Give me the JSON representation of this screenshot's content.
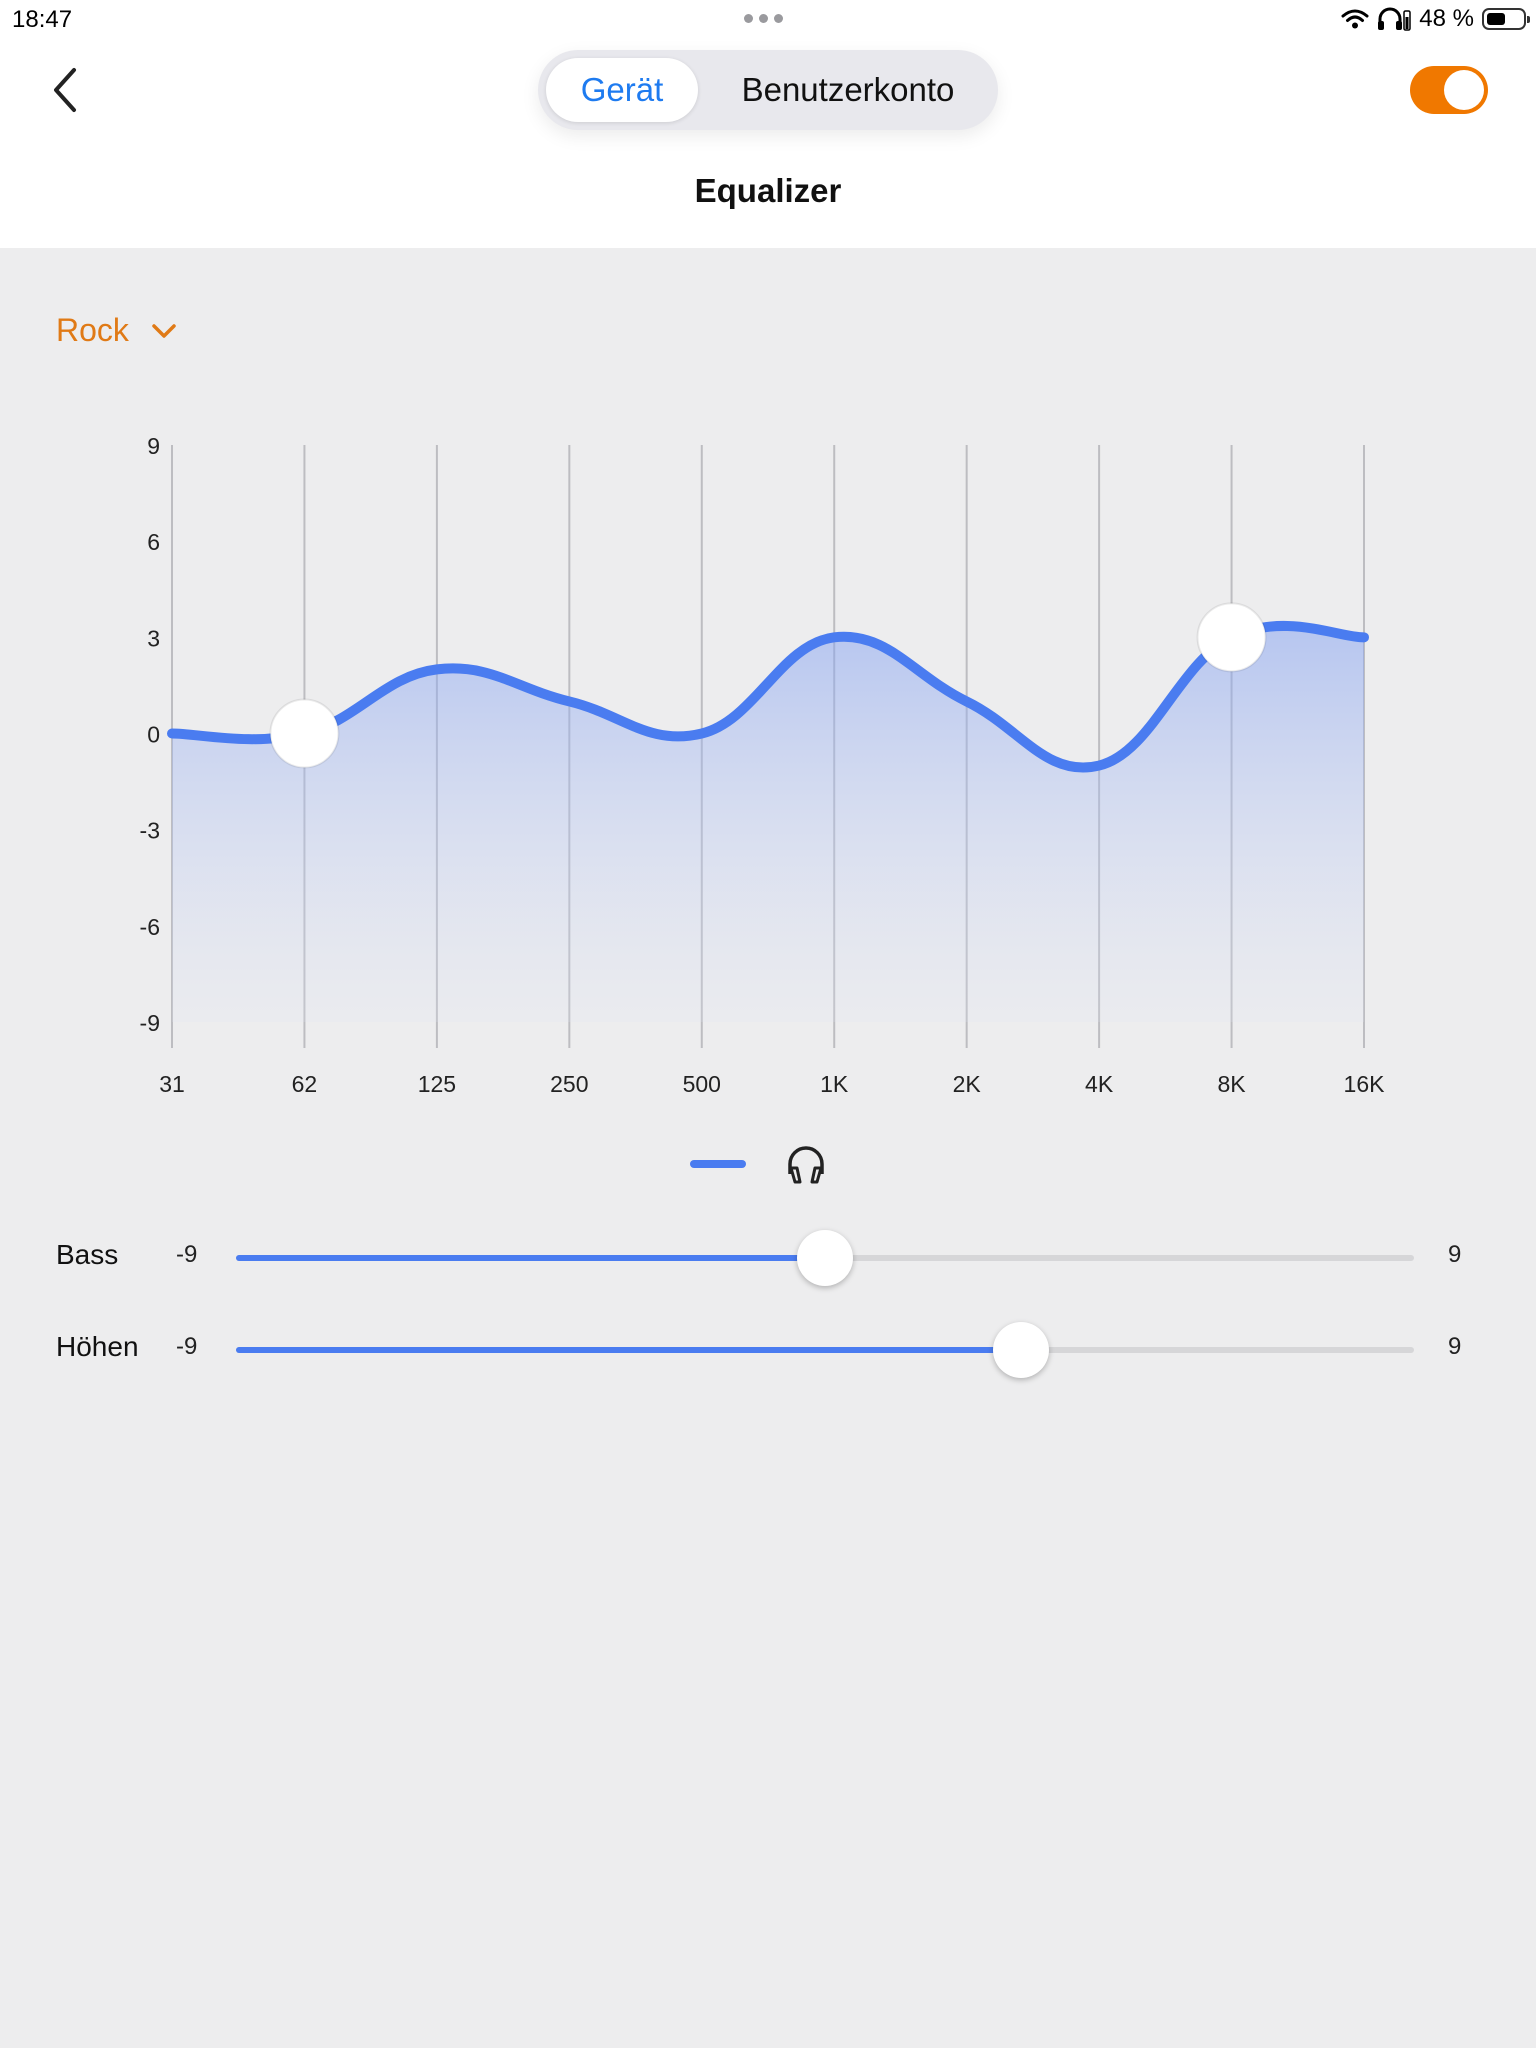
{
  "status_bar": {
    "time": "18:47",
    "battery_text": "48 %",
    "battery_level": 0.48,
    "icons": [
      "wifi-icon",
      "headphones-battery-icon",
      "battery-icon"
    ]
  },
  "nav": {
    "back_icon": "chevron-left-icon",
    "tabs": [
      {
        "label": "Gerät",
        "selected": true
      },
      {
        "label": "Benutzerkonto",
        "selected": false
      }
    ],
    "toggle_on": true,
    "title": "Equalizer"
  },
  "colors": {
    "accent_orange": "#f07800",
    "preset_orange": "#e07a16",
    "curve_blue": "#4a7cf0",
    "tab_blue": "#1e7bf0"
  },
  "preset": {
    "label": "Rock",
    "icon": "chevron-down-icon"
  },
  "chart_data": {
    "type": "line",
    "categories": [
      "31",
      "62",
      "125",
      "250",
      "500",
      "1K",
      "2K",
      "4K",
      "8K",
      "16K"
    ],
    "series": [
      {
        "values": [
          0,
          0,
          2,
          1,
          0,
          3,
          1,
          -1,
          3,
          3
        ]
      }
    ],
    "y_ticks": [
      "9",
      "6",
      "3",
      "0",
      "-3",
      "-6",
      "-9"
    ],
    "ylim": [
      -9,
      9
    ],
    "grid": "vertical",
    "handles": [
      {
        "category": "62",
        "value": 0
      },
      {
        "category": "8K",
        "value": 3
      }
    ]
  },
  "legend": {
    "icon": "headphones-icon"
  },
  "sliders": [
    {
      "label": "Bass",
      "min": "-9",
      "max": "9",
      "value": 0
    },
    {
      "label": "Höhen",
      "min": "-9",
      "max": "9",
      "value": 3
    }
  ]
}
